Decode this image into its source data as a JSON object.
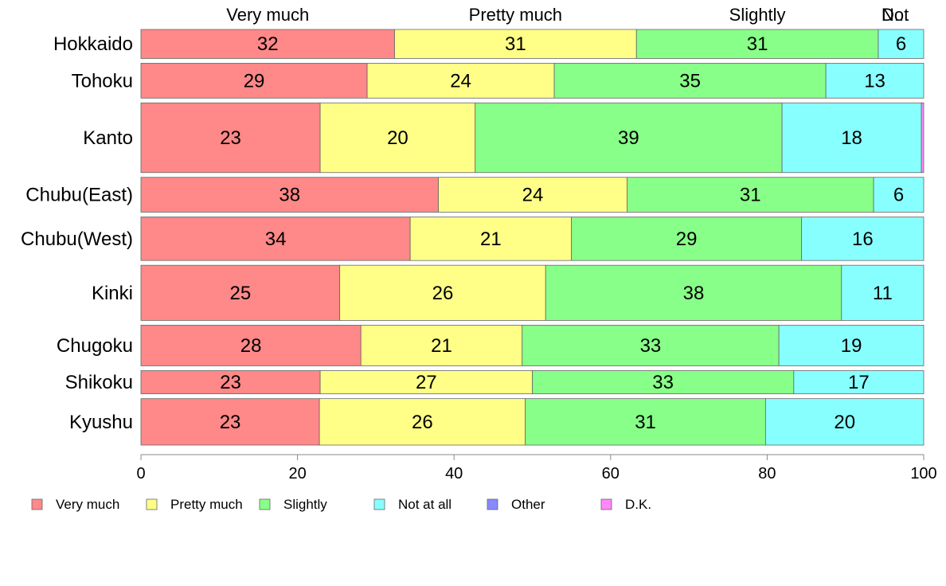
{
  "chart_data": {
    "type": "bar",
    "orientation": "horizontal",
    "stacked": true,
    "categories": [
      "Hokkaido",
      "Tohoku",
      "Kanto",
      "Chubu(East)",
      "Chubu(West)",
      "Kinki",
      "Chugoku",
      "Shikoku",
      "Kyushu"
    ],
    "series": [
      {
        "name": "Very much",
        "color": "#FF8888",
        "values": [
          32.4,
          28.9,
          22.9,
          38.0,
          34.4,
          25.4,
          28.1,
          22.9,
          22.8
        ]
      },
      {
        "name": "Pretty much",
        "color": "#FFFF88",
        "values": [
          30.9,
          23.9,
          19.8,
          24.1,
          20.6,
          26.3,
          20.6,
          27.1,
          26.3
        ]
      },
      {
        "name": "Slightly",
        "color": "#88FF88",
        "values": [
          30.9,
          34.7,
          39.2,
          31.5,
          29.4,
          37.8,
          32.8,
          33.4,
          30.7
        ]
      },
      {
        "name": "Not at all",
        "color": "#88FFFF",
        "values": [
          5.8,
          12.5,
          17.8,
          6.4,
          15.6,
          10.5,
          18.5,
          16.6,
          20.2
        ]
      },
      {
        "name": "Other",
        "color": "#8888FF",
        "values": [
          0,
          0,
          0,
          0,
          0,
          0,
          0,
          0,
          0
        ]
      },
      {
        "name": "D.K.",
        "color": "#FF88FF",
        "values": [
          0,
          0,
          0.3,
          0,
          0,
          0,
          0,
          0,
          0
        ]
      }
    ],
    "segment_labels": [
      [
        "32",
        "31",
        "31",
        "6"
      ],
      [
        "29",
        "24",
        "35",
        "13"
      ],
      [
        "23",
        "20",
        "39",
        "18"
      ],
      [
        "38",
        "24",
        "31",
        "6"
      ],
      [
        "34",
        "21",
        "29",
        "16"
      ],
      [
        "25",
        "26",
        "38",
        "11"
      ],
      [
        "28",
        "21",
        "33",
        "19"
      ],
      [
        "23",
        "27",
        "33",
        "17"
      ],
      [
        "23",
        "26",
        "31",
        "20"
      ]
    ],
    "relative_widths": [
      1.0,
      1.2,
      2.4,
      1.2,
      1.5,
      1.9,
      1.4,
      0.8,
      1.6
    ],
    "top_labels": [
      "Very much",
      "Pretty much",
      "Slightly",
      "Not",
      "D..."
    ],
    "xlim": [
      0,
      100
    ],
    "xticks": [
      "0",
      "20",
      "40",
      "60",
      "80",
      "100"
    ],
    "grid": false,
    "legend_position": "bottom",
    "edge_color": "#666666",
    "axis_color": "#888888"
  }
}
